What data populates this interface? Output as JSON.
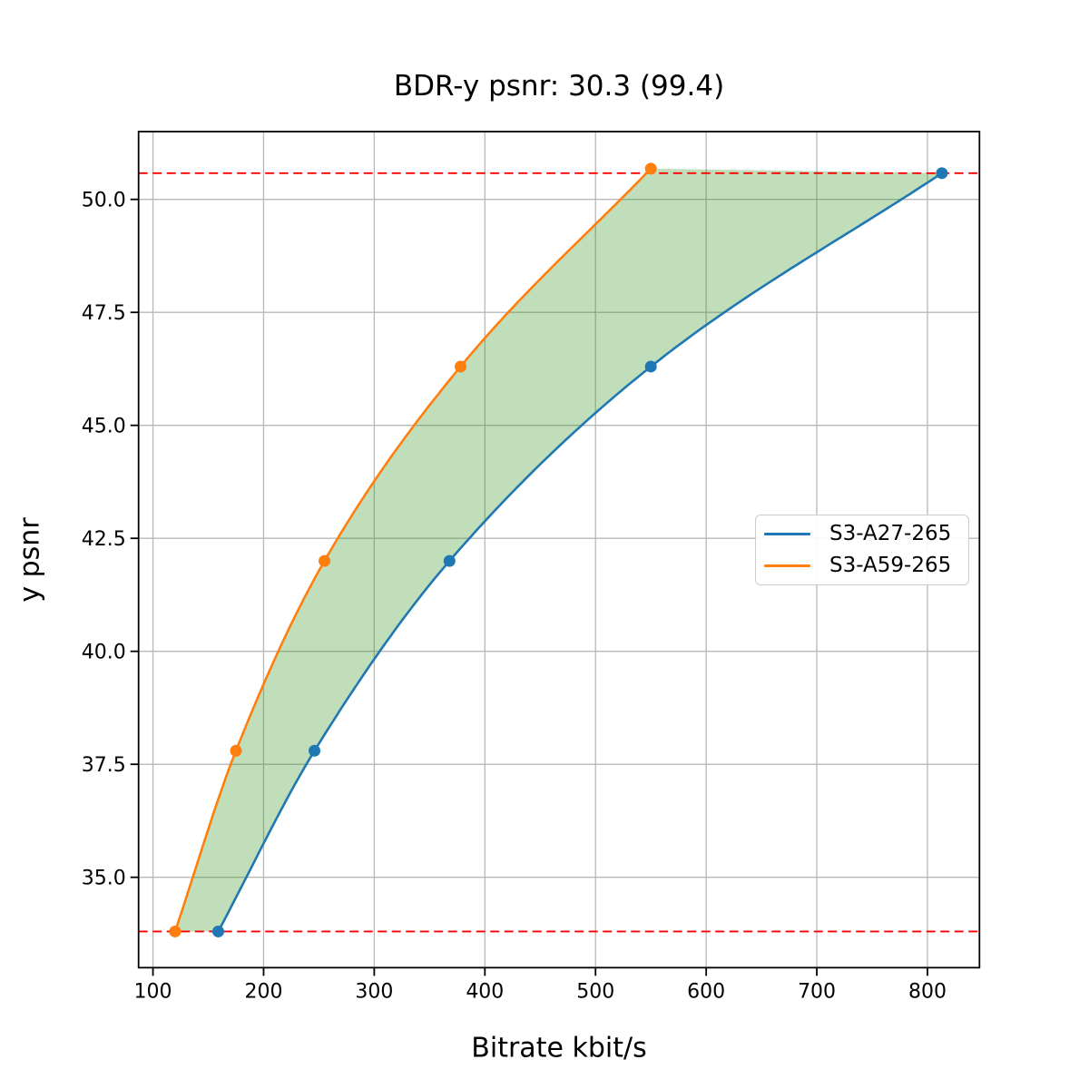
{
  "chart_data": {
    "type": "line",
    "title": "BDR-y psnr: 30.3 (99.4)",
    "xlabel": "Bitrate kbit/s",
    "ylabel": "y psnr",
    "xlim": [
      87,
      847
    ],
    "ylim": [
      33.0,
      51.5
    ],
    "xticks": [
      100,
      200,
      300,
      400,
      500,
      600,
      700,
      800
    ],
    "yticks": [
      35.0,
      37.5,
      40.0,
      42.5,
      45.0,
      47.5,
      50.0
    ],
    "grid": true,
    "grid_color": "#b8b8b8",
    "legend_position": "center right",
    "series": [
      {
        "name": "S3-A27-265",
        "color": "#1f77b4",
        "marker": "circle",
        "x": [
          159,
          246,
          368,
          550,
          813
        ],
        "y": [
          33.8,
          37.8,
          42.0,
          46.3,
          50.58
        ]
      },
      {
        "name": "S3-A59-265",
        "color": "#ff7f0e",
        "marker": "circle",
        "x": [
          120,
          175,
          255,
          378,
          550
        ],
        "y": [
          33.8,
          37.8,
          42.0,
          46.3,
          50.68
        ]
      }
    ],
    "hlines": [
      {
        "y": 33.8,
        "color": "#ff0000",
        "style": "dashed"
      },
      {
        "y": 50.58,
        "color": "#ff0000",
        "style": "dashed"
      }
    ],
    "fill_between": {
      "lower_series": "S3-A27-265",
      "upper_series": "S3-A59-265",
      "color": "rgba(48,145,28,0.30)"
    }
  }
}
